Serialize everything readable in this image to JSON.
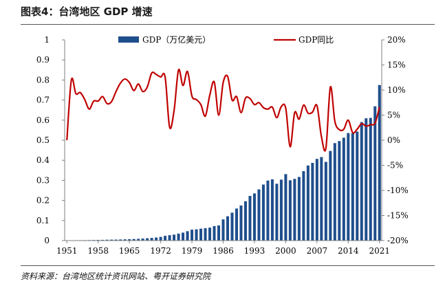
{
  "figure": {
    "title": "图表4：台湾地区 GDP 增速",
    "source": "资料来源：台湾地区统计资讯网站、粤开证券研究院"
  },
  "chart_data": {
    "type": "bar+line",
    "x": [
      1951,
      1952,
      1953,
      1954,
      1955,
      1956,
      1957,
      1958,
      1959,
      1960,
      1961,
      1962,
      1963,
      1964,
      1965,
      1966,
      1967,
      1968,
      1969,
      1970,
      1971,
      1972,
      1973,
      1974,
      1975,
      1976,
      1977,
      1978,
      1979,
      1980,
      1981,
      1982,
      1983,
      1984,
      1985,
      1986,
      1987,
      1988,
      1989,
      1990,
      1991,
      1992,
      1993,
      1994,
      1995,
      1996,
      1997,
      1998,
      1999,
      2000,
      2001,
      2002,
      2003,
      2004,
      2005,
      2006,
      2007,
      2008,
      2009,
      2010,
      2011,
      2012,
      2013,
      2014,
      2015,
      2016,
      2017,
      2018,
      2019,
      2020,
      2021
    ],
    "x_ticks": [
      "1951",
      "1958",
      "1965",
      "1972",
      "1979",
      "1986",
      "1993",
      "2000",
      "2007",
      "2014",
      "2021"
    ],
    "series": [
      {
        "name": "GDP（万亿美元）",
        "type": "bar",
        "axis": "left",
        "color": "#1f4e8c",
        "values": [
          0.0013,
          0.0014,
          0.0017,
          0.0019,
          0.0023,
          0.0025,
          0.0029,
          0.0033,
          0.0036,
          0.0043,
          0.0046,
          0.0049,
          0.0054,
          0.0062,
          0.007,
          0.0078,
          0.0088,
          0.0101,
          0.0116,
          0.0132,
          0.0153,
          0.0182,
          0.0236,
          0.027,
          0.0297,
          0.0346,
          0.0395,
          0.0468,
          0.0542,
          0.0561,
          0.0593,
          0.0617,
          0.0645,
          0.0723,
          0.0756,
          0.1055,
          0.121,
          0.139,
          0.1595,
          0.1749,
          0.196,
          0.2225,
          0.235,
          0.255,
          0.279,
          0.299,
          0.305,
          0.283,
          0.3035,
          0.331,
          0.3005,
          0.3075,
          0.317,
          0.346,
          0.374,
          0.387,
          0.407,
          0.416,
          0.392,
          0.4465,
          0.4855,
          0.4958,
          0.5125,
          0.5357,
          0.5348,
          0.543,
          0.5903,
          0.6091,
          0.6112,
          0.669,
          0.775
        ]
      },
      {
        "name": "GDP同比",
        "type": "line",
        "axis": "right",
        "color": "#c00000",
        "values": [
          0.0,
          12.0,
          9.3,
          9.5,
          8.1,
          6.2,
          7.8,
          7.8,
          8.7,
          7.3,
          7.7,
          9.7,
          11.4,
          12.2,
          11.5,
          9.9,
          11.2,
          9.7,
          10.6,
          13.4,
          13.1,
          12.6,
          12.6,
          2.6,
          5.9,
          14.0,
          10.9,
          13.7,
          8.8,
          8.1,
          7.1,
          4.8,
          9.0,
          11.6,
          5.0,
          11.5,
          12.7,
          8.0,
          8.7,
          5.5,
          8.4,
          8.3,
          7.1,
          7.5,
          6.5,
          6.2,
          6.6,
          4.5,
          6.7,
          6.4,
          -1.3,
          5.5,
          4.2,
          7.0,
          5.4,
          5.6,
          6.9,
          0.7,
          -1.6,
          10.6,
          3.8,
          2.1,
          2.2,
          4.0,
          1.5,
          2.2,
          3.3,
          2.8,
          3.1,
          3.4,
          6.6
        ]
      }
    ],
    "left_axis": {
      "ylim": [
        0,
        1
      ],
      "ticks": [
        "0",
        "0.1",
        "0.2",
        "0.3",
        "0.4",
        "0.5",
        "0.6",
        "0.7",
        "0.8",
        "0.9",
        "1"
      ]
    },
    "right_axis": {
      "ylim": [
        -20,
        20
      ],
      "ticks": [
        "-20%",
        "-15%",
        "-10%",
        "-5%",
        "0%",
        "5%",
        "10%",
        "15%",
        "20%"
      ]
    },
    "grid": false,
    "legend_position": "top"
  }
}
